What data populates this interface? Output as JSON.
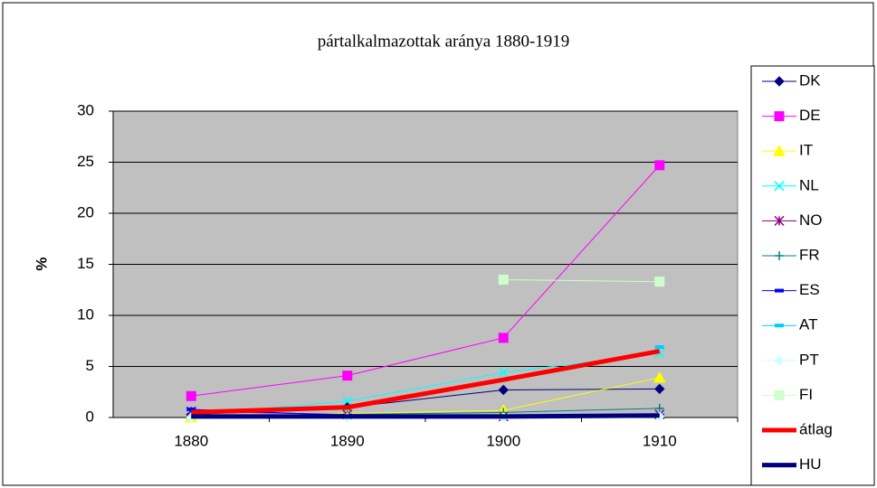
{
  "chart_data": {
    "type": "line",
    "title": "pártalkalmazottak aránya 1880-1919",
    "y_label": "%",
    "categories": [
      "1880",
      "1890",
      "1900",
      "1910"
    ],
    "ylim": [
      0,
      30
    ],
    "yticks": [
      0,
      5,
      10,
      15,
      20,
      25,
      30
    ],
    "grid": true,
    "legend": "right",
    "series": [
      {
        "name": "DK",
        "color": "#000080",
        "marker": "diamond",
        "line_width": 1,
        "values": [
          0.3,
          1.0,
          2.7,
          2.8
        ]
      },
      {
        "name": "DE",
        "color": "#ff00ff",
        "marker": "square",
        "line_width": 1,
        "values": [
          2.1,
          4.1,
          7.8,
          24.7
        ]
      },
      {
        "name": "IT",
        "color": "#ffff00",
        "marker": "triangle",
        "line_width": 1,
        "values": [
          0,
          0.4,
          0.7,
          3.9
        ]
      },
      {
        "name": "NL",
        "color": "#00ffff",
        "marker": "x",
        "line_width": 1,
        "values": [
          0.3,
          1.6,
          4.4,
          6.3
        ]
      },
      {
        "name": "NO",
        "color": "#800080",
        "marker": "star",
        "line_width": 1,
        "values": [
          0.6,
          0.3,
          0.1,
          0.3
        ]
      },
      {
        "name": "FR",
        "color": "#008080",
        "marker": "plus",
        "line_width": 1,
        "values": [
          0.1,
          0.3,
          0.5,
          0.9
        ]
      },
      {
        "name": "ES",
        "color": "#0000ff",
        "marker": "dash",
        "line_width": 1,
        "values": [
          0.8,
          0.2,
          0.1,
          0.2
        ]
      },
      {
        "name": "AT",
        "color": "#00ccff",
        "marker": "dash",
        "line_width": 1,
        "values": [
          null,
          null,
          null,
          6.9
        ]
      },
      {
        "name": "PT",
        "color": "#ccffff",
        "marker": "diamond",
        "line_width": 1,
        "values": [
          0,
          0,
          0,
          0.1
        ]
      },
      {
        "name": "FI",
        "color": "#ccffcc",
        "marker": "square",
        "line_width": 1,
        "values": [
          null,
          null,
          13.5,
          13.3
        ]
      },
      {
        "name": "átlag",
        "color": "#ff0000",
        "marker": "none",
        "line_width": 5,
        "values": [
          0.5,
          1.0,
          3.7,
          6.5
        ]
      },
      {
        "name": "HU",
        "color": "#000080",
        "marker": "none",
        "line_width": 5,
        "values": [
          0.1,
          0.1,
          0.1,
          0.2
        ]
      }
    ]
  }
}
